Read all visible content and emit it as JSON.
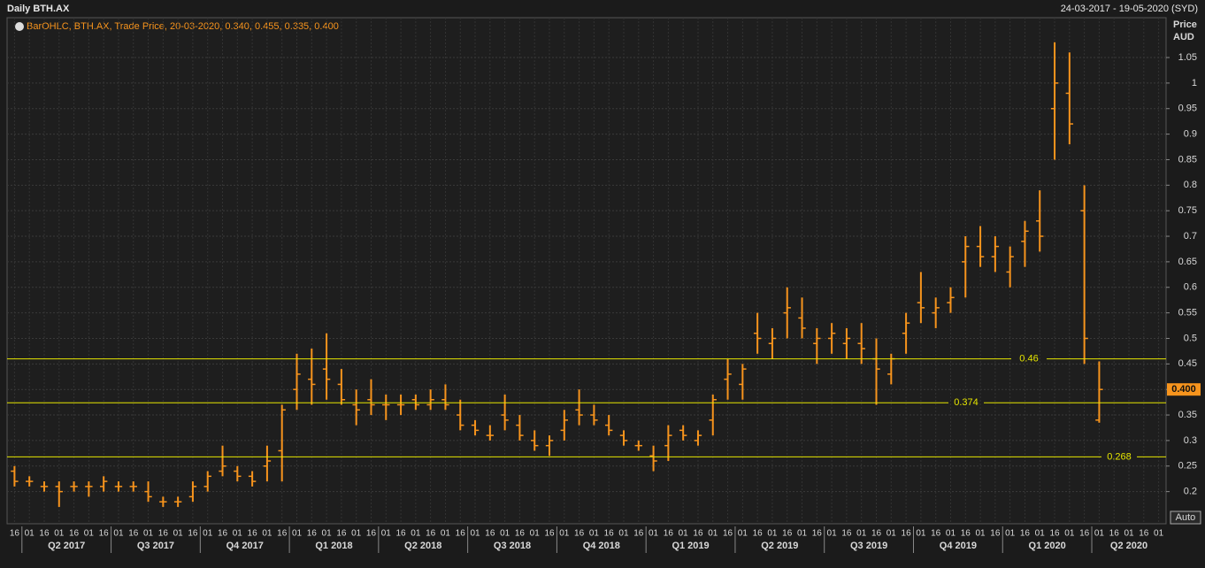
{
  "chart_data": {
    "type": "ohlc",
    "title": "Daily BTH.AX",
    "date_range": "24-03-2017 - 19-05-2020 (SYD)",
    "legend_text": "BarOHLC, BTH.AX, Trade Price, 20-03-2020, 0.340, 0.455, 0.335, 0.400",
    "y_axis_label": "Price",
    "y_axis_unit": "AUD",
    "scale_mode": "Auto",
    "color": "#f7941d",
    "level_color": "#e6e600",
    "grid": true,
    "categories": [
      "16",
      "01",
      "16",
      "01",
      "16",
      "01",
      "16",
      "01",
      "16",
      "01",
      "16",
      "01",
      "16",
      "01",
      "16",
      "01",
      "16",
      "01",
      "16",
      "01",
      "16",
      "01",
      "16",
      "01",
      "16",
      "01",
      "16",
      "01",
      "16",
      "01",
      "16",
      "01",
      "16",
      "01",
      "16",
      "01",
      "16",
      "01",
      "16",
      "01",
      "16",
      "01",
      "16",
      "01",
      "16",
      "01",
      "16",
      "01",
      "16",
      "01",
      "16",
      "01",
      "16",
      "01",
      "16",
      "01",
      "16",
      "01",
      "16",
      "01",
      "16",
      "01",
      "16",
      "01",
      "16",
      "01",
      "16",
      "01",
      "16",
      "01",
      "16",
      "01",
      "16",
      "01",
      "16",
      "01",
      "16",
      "01"
    ],
    "quarters": [
      {
        "value": 1,
        "label": "Q2 2017"
      },
      {
        "value": 7,
        "label": "Q3 2017"
      },
      {
        "value": 13,
        "label": "Q4 2017"
      },
      {
        "value": 19,
        "label": "Q1 2018"
      },
      {
        "value": 25,
        "label": "Q2 2018"
      },
      {
        "value": 31,
        "label": "Q3 2018"
      },
      {
        "value": 37,
        "label": "Q4 2018"
      },
      {
        "value": 43,
        "label": "Q1 2019"
      },
      {
        "value": 49,
        "label": "Q2 2019"
      },
      {
        "value": 55,
        "label": "Q3 2019"
      },
      {
        "value": 61,
        "label": "Q4 2019"
      },
      {
        "value": 67,
        "label": "Q1 2020"
      },
      {
        "value": 73,
        "label": "Q2 2020"
      }
    ],
    "series": [
      {
        "name": "BTH.AX",
        "open": [
          0.24,
          0.22,
          0.21,
          0.21,
          0.21,
          0.21,
          0.21,
          0.21,
          0.21,
          0.2,
          0.18,
          0.18,
          0.19,
          0.21,
          0.24,
          0.24,
          0.23,
          0.25,
          0.28,
          0.4,
          0.42,
          0.44,
          0.41,
          0.37,
          0.38,
          0.37,
          0.37,
          0.38,
          0.37,
          0.38,
          0.35,
          0.33,
          0.31,
          0.35,
          0.33,
          0.3,
          0.29,
          0.32,
          0.36,
          0.35,
          0.33,
          0.31,
          0.29,
          0.27,
          0.29,
          0.32,
          0.3,
          0.34,
          0.42,
          0.41,
          0.51,
          0.49,
          0.55,
          0.54,
          0.49,
          0.5,
          0.49,
          0.49,
          0.46,
          0.43,
          0.51,
          0.57,
          0.55,
          0.57,
          0.65,
          0.68,
          0.66,
          0.63,
          0.69,
          0.73,
          0.95,
          0.98,
          0.75,
          0.34,
          null,
          null,
          null,
          null
        ],
        "high": [
          0.25,
          0.23,
          0.22,
          0.22,
          0.22,
          0.22,
          0.23,
          0.22,
          0.22,
          0.22,
          0.19,
          0.19,
          0.22,
          0.24,
          0.29,
          0.25,
          0.24,
          0.29,
          0.37,
          0.47,
          0.48,
          0.51,
          0.44,
          0.4,
          0.42,
          0.39,
          0.39,
          0.39,
          0.4,
          0.41,
          0.38,
          0.34,
          0.33,
          0.39,
          0.35,
          0.32,
          0.31,
          0.36,
          0.4,
          0.37,
          0.35,
          0.32,
          0.3,
          0.29,
          0.33,
          0.33,
          0.32,
          0.39,
          0.46,
          0.45,
          0.55,
          0.52,
          0.6,
          0.58,
          0.52,
          0.53,
          0.52,
          0.53,
          0.5,
          0.47,
          0.55,
          0.63,
          0.58,
          0.6,
          0.7,
          0.72,
          0.7,
          0.68,
          0.73,
          0.79,
          1.08,
          1.06,
          0.8,
          0.455,
          null,
          null,
          null,
          null
        ],
        "low": [
          0.21,
          0.21,
          0.2,
          0.17,
          0.2,
          0.19,
          0.2,
          0.2,
          0.2,
          0.18,
          0.17,
          0.17,
          0.18,
          0.2,
          0.23,
          0.22,
          0.21,
          0.22,
          0.22,
          0.36,
          0.37,
          0.38,
          0.37,
          0.33,
          0.35,
          0.34,
          0.35,
          0.36,
          0.36,
          0.36,
          0.32,
          0.31,
          0.3,
          0.32,
          0.3,
          0.28,
          0.27,
          0.3,
          0.33,
          0.33,
          0.31,
          0.29,
          0.28,
          0.24,
          0.26,
          0.3,
          0.29,
          0.31,
          0.38,
          0.38,
          0.47,
          0.46,
          0.5,
          0.5,
          0.45,
          0.47,
          0.46,
          0.45,
          0.37,
          0.41,
          0.47,
          0.53,
          0.52,
          0.55,
          0.58,
          0.64,
          0.63,
          0.6,
          0.64,
          0.67,
          0.85,
          0.88,
          0.45,
          0.335,
          null,
          null,
          null,
          null
        ],
        "close": [
          0.22,
          0.22,
          0.21,
          0.2,
          0.21,
          0.21,
          0.22,
          0.21,
          0.21,
          0.19,
          0.18,
          0.18,
          0.21,
          0.23,
          0.25,
          0.23,
          0.22,
          0.26,
          0.36,
          0.43,
          0.41,
          0.42,
          0.38,
          0.36,
          0.37,
          0.37,
          0.37,
          0.37,
          0.38,
          0.37,
          0.33,
          0.32,
          0.31,
          0.34,
          0.31,
          0.29,
          0.3,
          0.34,
          0.35,
          0.34,
          0.32,
          0.3,
          0.29,
          0.26,
          0.31,
          0.31,
          0.31,
          0.38,
          0.43,
          0.44,
          0.5,
          0.5,
          0.56,
          0.52,
          0.5,
          0.51,
          0.5,
          0.48,
          0.44,
          0.46,
          0.53,
          0.56,
          0.56,
          0.58,
          0.68,
          0.66,
          0.68,
          0.66,
          0.71,
          0.7,
          1.0,
          0.92,
          0.5,
          0.4,
          null,
          null,
          null,
          null
        ]
      }
    ],
    "levels": [
      0.46,
      0.374,
      0.268
    ],
    "last_price": {
      "value": 0.4,
      "label": "0.400"
    },
    "ylim": [
      0.137,
      1.128
    ],
    "yticks": [
      0.2,
      0.25,
      0.3,
      0.35,
      0.4,
      0.45,
      0.5,
      0.55,
      0.6,
      0.65,
      0.7,
      0.75,
      0.8,
      0.85,
      0.9,
      0.95,
      1,
      1.05
    ]
  }
}
